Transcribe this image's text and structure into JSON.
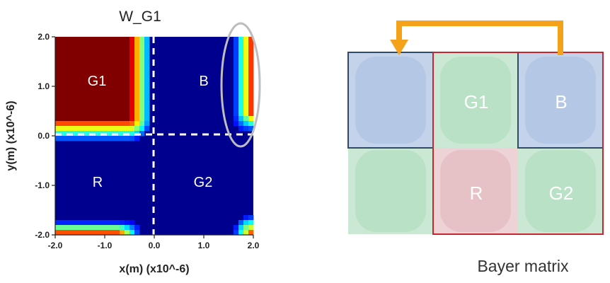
{
  "heatmap": {
    "title": "W_G1",
    "xlabel": "x(m) (x10^-6)",
    "ylabel": "y(m) (x10^-6)",
    "x_ticks": [
      "-2.0",
      "-1.0",
      "0.0",
      "1.0",
      "2.0"
    ],
    "y_ticks": [
      "2.0",
      "1.0",
      "0.0",
      "-1.0",
      "-2.0"
    ],
    "quadrant_labels": {
      "g1": "G1",
      "b": "B",
      "r": "R",
      "g2": "G2"
    }
  },
  "bayer": {
    "caption": "Bayer matrix",
    "cells": [
      "",
      "G1",
      "B",
      "",
      "R",
      "G2"
    ]
  },
  "colors": {
    "jet_low": "#00008f",
    "jet_high": "#800000",
    "arrow": "#f5a21b",
    "blue_cell": "#bccfe8",
    "green_cell": "#bfe3cc",
    "red_cell": "#e9c9cb",
    "box_blue": "#2f4a6b",
    "box_red": "#c8262f",
    "ellipse": "#bdbdbd"
  }
}
